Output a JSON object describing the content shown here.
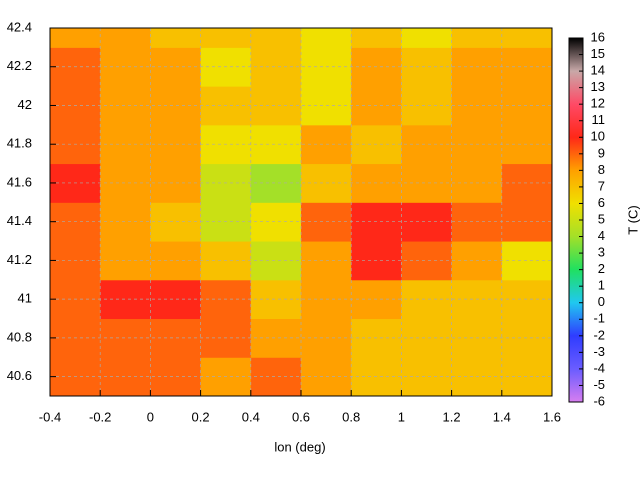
{
  "chart_data": {
    "type": "heatmap",
    "xlabel": "lon (deg)",
    "zlabel": "T (C)",
    "x": [
      -0.3,
      -0.1,
      0.1,
      0.3,
      0.5,
      0.7,
      0.9,
      1.1,
      1.3,
      1.5
    ],
    "y": [
      40.6,
      40.8,
      41.0,
      41.2,
      41.4,
      41.6,
      41.8,
      42.0,
      42.2,
      42.4
    ],
    "values": [
      [
        9,
        9,
        9,
        8,
        9,
        8,
        7,
        7,
        7,
        7
      ],
      [
        9,
        9,
        9,
        9,
        8,
        8,
        7,
        7,
        7,
        7
      ],
      [
        9,
        10,
        10,
        9,
        7,
        8,
        8,
        7,
        7,
        7
      ],
      [
        9,
        8,
        8,
        7,
        5,
        8,
        10,
        9,
        8,
        6
      ],
      [
        9,
        8,
        7,
        5,
        6,
        9,
        10,
        10,
        9,
        9
      ],
      [
        10,
        8,
        8,
        5,
        4,
        7,
        8,
        8,
        8,
        9
      ],
      [
        9,
        8,
        8,
        6,
        6,
        8,
        7,
        8,
        8,
        8
      ],
      [
        9,
        8,
        8,
        7,
        7,
        6,
        8,
        7,
        8,
        8
      ],
      [
        9,
        8,
        8,
        6,
        7,
        6,
        8,
        7,
        8,
        8
      ],
      [
        8,
        8,
        7,
        7,
        7,
        6,
        7,
        6,
        7,
        7
      ]
    ],
    "xlim": [
      -0.4,
      1.6
    ],
    "xticks": [
      -0.4,
      -0.2,
      0,
      0.2,
      0.4,
      0.6,
      0.8,
      1,
      1.2,
      1.4,
      1.6
    ],
    "ylim": [
      40.5,
      42.4
    ],
    "yticks": [
      40.6,
      40.8,
      41,
      41.2,
      41.4,
      41.6,
      41.8,
      42,
      42.2,
      42.4
    ],
    "zlim": [
      -6,
      16
    ],
    "zticks": [
      -6,
      -5,
      -4,
      -3,
      -2,
      -1,
      0,
      1,
      2,
      3,
      4,
      5,
      6,
      7,
      8,
      9,
      10,
      11,
      12,
      13,
      14,
      15,
      16
    ],
    "palette": [
      "#d77ef0",
      "#6a5cff",
      "#2f3cff",
      "#20c8f0",
      "#20e060",
      "#a4e028",
      "#f0e000",
      "#ffa000",
      "#ff2818",
      "#ff4a66",
      "#c8a8a8",
      "#000000"
    ],
    "grid": true
  }
}
